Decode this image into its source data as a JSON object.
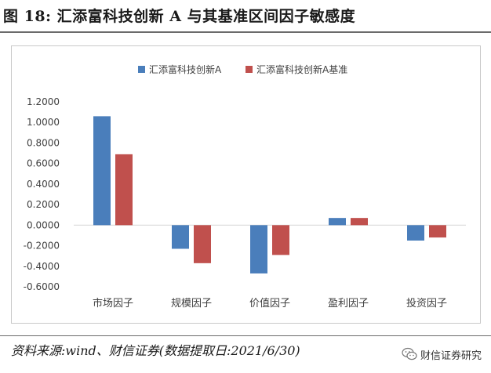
{
  "figure_title": "图 18:  汇添富科技创新 A 与其基准区间因子敏感度",
  "source_text": "资料来源:wind、财信证券(数据提取日:2021/6/30)",
  "watermark_text": "财信证券研究",
  "colors": {
    "series_a": "#4a7ebb",
    "series_b": "#c0504d",
    "zero_line": "#d9d9d9",
    "frame": "#c9c9c9",
    "text": "#404040"
  },
  "chart_data": {
    "type": "bar",
    "title": "",
    "xlabel": "",
    "ylabel": "",
    "ylim": [
      -0.6,
      1.2
    ],
    "yticks": [
      -0.6,
      -0.4,
      -0.2,
      0.0,
      0.2,
      0.4,
      0.6,
      0.8,
      1.0,
      1.2
    ],
    "ytick_labels": [
      "-0.6000",
      "-0.4000",
      "-0.2000",
      "0.0000",
      "0.2000",
      "0.4000",
      "0.6000",
      "0.8000",
      "1.0000",
      "1.2000"
    ],
    "grid": false,
    "legend_position": "top-center",
    "categories": [
      "市场因子",
      "规模因子",
      "价值因子",
      "盈利因子",
      "投资因子"
    ],
    "series": [
      {
        "name": "汇添富科技创新A",
        "color_key": "series_a",
        "values": [
          1.06,
          -0.23,
          -0.47,
          0.07,
          -0.15
        ]
      },
      {
        "name": "汇添富科技创新A基准",
        "color_key": "series_b",
        "values": [
          0.69,
          -0.37,
          -0.29,
          0.07,
          -0.12
        ]
      }
    ]
  }
}
